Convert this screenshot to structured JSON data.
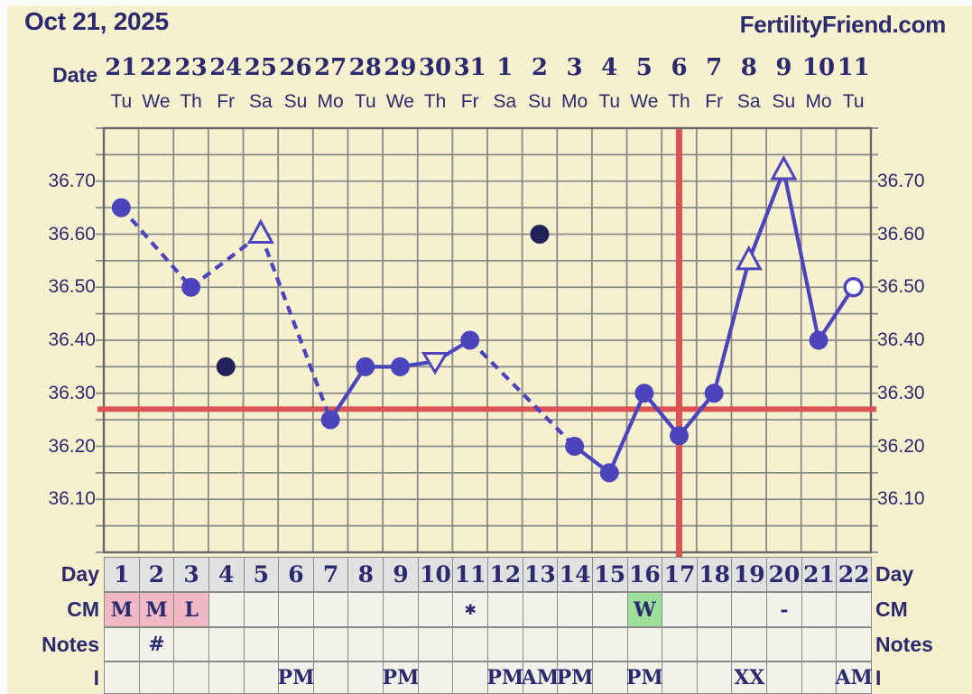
{
  "header": {
    "date": "Oct 21, 2025",
    "site": "FertilityFriend.com"
  },
  "axis": {
    "date_label": "Date",
    "dates": [
      "21",
      "22",
      "23",
      "24",
      "25",
      "26",
      "27",
      "28",
      "29",
      "30",
      "31",
      "1",
      "2",
      "3",
      "4",
      "5",
      "6",
      "7",
      "8",
      "9",
      "10",
      "11"
    ],
    "weekdays": [
      "Tu",
      "We",
      "Th",
      "Fr",
      "Sa",
      "Su",
      "Mo",
      "Tu",
      "We",
      "Th",
      "Fr",
      "Sa",
      "Su",
      "Mo",
      "Tu",
      "We",
      "Th",
      "Fr",
      "Sa",
      "Su",
      "Mo",
      "Tu"
    ],
    "y_labels": [
      "36.70",
      "36.60",
      "36.50",
      "36.40",
      "36.30",
      "36.20",
      "36.10"
    ]
  },
  "chart_data": {
    "type": "line",
    "title": "Basal body temperature chart",
    "x_days": 22,
    "ylim": [
      36.0,
      36.8
    ],
    "y_grid_step": 0.05,
    "y_tick_labels": [
      "36.70",
      "36.60",
      "36.50",
      "36.40",
      "36.30",
      "36.20",
      "36.10"
    ],
    "grid": true,
    "coverline_value": 36.27,
    "ovulation_line_day": 17,
    "points": [
      {
        "day": 1,
        "value": 36.65,
        "marker": "circle"
      },
      {
        "day": 3,
        "value": 36.5,
        "marker": "circle"
      },
      {
        "day": 5,
        "value": 36.6,
        "marker": "triangle-up"
      },
      {
        "day": 7,
        "value": 36.25,
        "marker": "circle"
      },
      {
        "day": 8,
        "value": 36.35,
        "marker": "circle"
      },
      {
        "day": 9,
        "value": 36.35,
        "marker": "circle"
      },
      {
        "day": 10,
        "value": 36.36,
        "marker": "triangle-down"
      },
      {
        "day": 11,
        "value": 36.4,
        "marker": "circle"
      },
      {
        "day": 14,
        "value": 36.2,
        "marker": "circle"
      },
      {
        "day": 15,
        "value": 36.15,
        "marker": "circle"
      },
      {
        "day": 16,
        "value": 36.3,
        "marker": "circle"
      },
      {
        "day": 17,
        "value": 36.22,
        "marker": "circle"
      },
      {
        "day": 18,
        "value": 36.3,
        "marker": "circle"
      },
      {
        "day": 19,
        "value": 36.55,
        "marker": "triangle-up"
      },
      {
        "day": 20,
        "value": 36.72,
        "marker": "triangle-up"
      },
      {
        "day": 21,
        "value": 36.4,
        "marker": "circle"
      },
      {
        "day": 22,
        "value": 36.5,
        "marker": "circle-open"
      }
    ],
    "excluded_points": [
      {
        "day": 4,
        "value": 36.35
      },
      {
        "day": 13,
        "value": 36.6
      }
    ],
    "segments": [
      {
        "from": 1,
        "to": 3,
        "dashed": true
      },
      {
        "from": 3,
        "to": 5,
        "dashed": true
      },
      {
        "from": 5,
        "to": 7,
        "dashed": true
      },
      {
        "from": 7,
        "to": 8,
        "dashed": false
      },
      {
        "from": 8,
        "to": 9,
        "dashed": false
      },
      {
        "from": 9,
        "to": 10,
        "dashed": false
      },
      {
        "from": 10,
        "to": 11,
        "dashed": false
      },
      {
        "from": 11,
        "to": 14,
        "dashed": true
      },
      {
        "from": 14,
        "to": 15,
        "dashed": false
      },
      {
        "from": 15,
        "to": 16,
        "dashed": false
      },
      {
        "from": 16,
        "to": 17,
        "dashed": false
      },
      {
        "from": 17,
        "to": 18,
        "dashed": false
      },
      {
        "from": 18,
        "to": 19,
        "dashed": false
      },
      {
        "from": 19,
        "to": 20,
        "dashed": false
      },
      {
        "from": 20,
        "to": 21,
        "dashed": false
      },
      {
        "from": 21,
        "to": 22,
        "dashed": false
      }
    ]
  },
  "table": {
    "row_labels_left": {
      "day": "Day",
      "cm": "CM",
      "notes": "Notes",
      "time": "I"
    },
    "row_labels_right": {
      "day": "Day",
      "cm": "CM",
      "notes": "Notes",
      "time": "I"
    },
    "days": [
      "1",
      "2",
      "3",
      "4",
      "5",
      "6",
      "7",
      "8",
      "9",
      "10",
      "11",
      "12",
      "13",
      "14",
      "15",
      "16",
      "17",
      "18",
      "19",
      "20",
      "21",
      "22"
    ],
    "cm_cells": {
      "1": {
        "text": "M",
        "bg": "pink"
      },
      "2": {
        "text": "M",
        "bg": "pink"
      },
      "3": {
        "text": "L",
        "bg": "pink"
      },
      "11": {
        "text": "✱"
      },
      "16": {
        "text": "W",
        "bg": "green"
      },
      "20": {
        "text": "-"
      }
    },
    "notes_cells": {
      "2": {
        "text": "#"
      }
    },
    "time_cells": {
      "6": "PM",
      "9": "PM",
      "12": "PM",
      "13": "AM",
      "14": "PM",
      "16": "PM",
      "19": "XX",
      "22": "AM"
    }
  },
  "colors": {
    "background": "#f6f0cf",
    "page_margin": "#fbfbfb",
    "text_navy": "#2b2a6e",
    "temp_line": "#4b44bd",
    "excluded_dot": "#22215a",
    "red_line": "#dd5353",
    "grid": "#8a8a8a",
    "plot_border": "#666666",
    "cell_bg": "#f3f2ea",
    "day_header_bg": "#e1e1e1",
    "cm_pink": "#f2b7c5",
    "cm_green": "#9cdf9a"
  }
}
